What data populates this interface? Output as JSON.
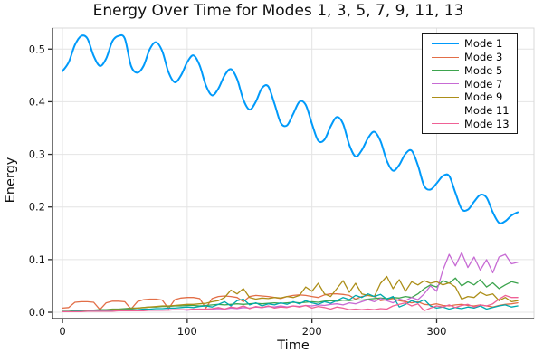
{
  "chart_data": {
    "type": "line",
    "title": "Energy Over Time for Modes 1, 3, 5, 7, 9, 11, 13",
    "xlabel": "Time",
    "ylabel": "Energy",
    "xlim": [
      -8,
      378
    ],
    "ylim": [
      -0.012,
      0.54
    ],
    "grid": true,
    "legend_position": "top-right",
    "background_color": "#ffffff",
    "grid_color": "#e4e4e4",
    "frame_color": "#d9d9d9",
    "spine_color": "#2a2a2a",
    "xticks": {
      "values": [
        0,
        100,
        200,
        300
      ],
      "labels": [
        "0",
        "100",
        "200",
        "300"
      ]
    },
    "yticks": {
      "values": [
        0.0,
        0.1,
        0.2,
        0.3,
        0.4,
        0.5
      ],
      "labels": [
        "0.0",
        "0.1",
        "0.2",
        "0.3",
        "0.4",
        "0.5"
      ]
    },
    "t_start": 0,
    "t_step": 5,
    "series": [
      {
        "name": "Mode 1",
        "color": "#009AFA",
        "width": 2,
        "smooth": true,
        "values": [
          0.458,
          0.475,
          0.508,
          0.525,
          0.52,
          0.487,
          0.468,
          0.482,
          0.515,
          0.525,
          0.52,
          0.468,
          0.455,
          0.468,
          0.5,
          0.513,
          0.496,
          0.456,
          0.437,
          0.45,
          0.475,
          0.488,
          0.469,
          0.431,
          0.412,
          0.425,
          0.45,
          0.462,
          0.443,
          0.404,
          0.385,
          0.4,
          0.426,
          0.429,
          0.396,
          0.36,
          0.355,
          0.377,
          0.4,
          0.394,
          0.358,
          0.326,
          0.328,
          0.353,
          0.371,
          0.358,
          0.318,
          0.296,
          0.308,
          0.331,
          0.343,
          0.325,
          0.288,
          0.269,
          0.28,
          0.301,
          0.307,
          0.279,
          0.24,
          0.233,
          0.245,
          0.259,
          0.259,
          0.227,
          0.196,
          0.195,
          0.21,
          0.223,
          0.218,
          0.19,
          0.17,
          0.173,
          0.184,
          0.19
        ]
      },
      {
        "name": "Mode 3",
        "color": "#E26E47",
        "width": 1.3,
        "smooth": false,
        "values": [
          0.008,
          0.009,
          0.019,
          0.02,
          0.02,
          0.019,
          0.005,
          0.018,
          0.021,
          0.021,
          0.02,
          0.006,
          0.02,
          0.024,
          0.025,
          0.025,
          0.023,
          0.007,
          0.024,
          0.027,
          0.028,
          0.028,
          0.026,
          0.008,
          0.026,
          0.03,
          0.031,
          0.03,
          0.028,
          0.02,
          0.03,
          0.032,
          0.031,
          0.03,
          0.028,
          0.026,
          0.03,
          0.032,
          0.033,
          0.032,
          0.03,
          0.028,
          0.033,
          0.035,
          0.035,
          0.034,
          0.032,
          0.025,
          0.03,
          0.032,
          0.03,
          0.022,
          0.024,
          0.026,
          0.022,
          0.02,
          0.018,
          0.02,
          0.015,
          0.014,
          0.016,
          0.013,
          0.012,
          0.014,
          0.015,
          0.013,
          0.012,
          0.014,
          0.012,
          0.01,
          0.013,
          0.015,
          0.016,
          0.018
        ]
      },
      {
        "name": "Mode 5",
        "color": "#3DA44E",
        "width": 1.3,
        "smooth": false,
        "values": [
          0.002,
          0.002,
          0.003,
          0.003,
          0.004,
          0.004,
          0.005,
          0.005,
          0.006,
          0.006,
          0.007,
          0.008,
          0.008,
          0.009,
          0.01,
          0.01,
          0.011,
          0.011,
          0.012,
          0.012,
          0.013,
          0.013,
          0.012,
          0.013,
          0.014,
          0.015,
          0.014,
          0.015,
          0.016,
          0.015,
          0.016,
          0.017,
          0.016,
          0.017,
          0.018,
          0.017,
          0.018,
          0.019,
          0.018,
          0.019,
          0.02,
          0.019,
          0.021,
          0.022,
          0.021,
          0.023,
          0.022,
          0.024,
          0.023,
          0.025,
          0.026,
          0.027,
          0.026,
          0.028,
          0.027,
          0.03,
          0.028,
          0.035,
          0.045,
          0.052,
          0.048,
          0.06,
          0.055,
          0.065,
          0.05,
          0.058,
          0.052,
          0.062,
          0.048,
          0.056,
          0.045,
          0.052,
          0.058,
          0.055
        ]
      },
      {
        "name": "Mode 7",
        "color": "#C76BD4",
        "width": 1.3,
        "smooth": false,
        "values": [
          0.001,
          0.001,
          0.001,
          0.002,
          0.002,
          0.002,
          0.002,
          0.003,
          0.003,
          0.003,
          0.003,
          0.003,
          0.003,
          0.004,
          0.004,
          0.004,
          0.004,
          0.005,
          0.005,
          0.005,
          0.004,
          0.005,
          0.006,
          0.005,
          0.006,
          0.007,
          0.006,
          0.008,
          0.007,
          0.009,
          0.008,
          0.01,
          0.009,
          0.011,
          0.01,
          0.012,
          0.01,
          0.012,
          0.011,
          0.013,
          0.012,
          0.014,
          0.013,
          0.015,
          0.016,
          0.014,
          0.018,
          0.016,
          0.02,
          0.024,
          0.02,
          0.026,
          0.022,
          0.018,
          0.025,
          0.022,
          0.028,
          0.024,
          0.035,
          0.05,
          0.04,
          0.08,
          0.11,
          0.088,
          0.113,
          0.085,
          0.105,
          0.08,
          0.1,
          0.075,
          0.105,
          0.11,
          0.092,
          0.095
        ]
      },
      {
        "name": "Mode 9",
        "color": "#AC8E18",
        "width": 1.3,
        "smooth": false,
        "values": [
          0.001,
          0.001,
          0.002,
          0.002,
          0.003,
          0.003,
          0.004,
          0.004,
          0.005,
          0.005,
          0.006,
          0.007,
          0.008,
          0.009,
          0.01,
          0.011,
          0.012,
          0.012,
          0.013,
          0.014,
          0.015,
          0.015,
          0.016,
          0.017,
          0.02,
          0.022,
          0.028,
          0.042,
          0.035,
          0.045,
          0.028,
          0.025,
          0.027,
          0.026,
          0.028,
          0.027,
          0.03,
          0.028,
          0.032,
          0.048,
          0.04,
          0.055,
          0.035,
          0.03,
          0.045,
          0.06,
          0.038,
          0.055,
          0.035,
          0.032,
          0.03,
          0.055,
          0.068,
          0.045,
          0.062,
          0.04,
          0.058,
          0.052,
          0.06,
          0.055,
          0.058,
          0.052,
          0.056,
          0.048,
          0.025,
          0.03,
          0.028,
          0.038,
          0.032,
          0.035,
          0.022,
          0.028,
          0.02,
          0.022
        ]
      },
      {
        "name": "Mode 11",
        "color": "#00A9AD",
        "width": 1.3,
        "smooth": false,
        "values": [
          0.001,
          0.001,
          0.002,
          0.002,
          0.002,
          0.003,
          0.003,
          0.003,
          0.004,
          0.004,
          0.005,
          0.005,
          0.005,
          0.006,
          0.006,
          0.007,
          0.007,
          0.008,
          0.008,
          0.009,
          0.01,
          0.009,
          0.011,
          0.012,
          0.01,
          0.015,
          0.02,
          0.012,
          0.022,
          0.025,
          0.014,
          0.018,
          0.012,
          0.016,
          0.014,
          0.018,
          0.015,
          0.02,
          0.016,
          0.022,
          0.018,
          0.015,
          0.02,
          0.017,
          0.022,
          0.028,
          0.024,
          0.032,
          0.028,
          0.035,
          0.03,
          0.034,
          0.025,
          0.03,
          0.01,
          0.015,
          0.022,
          0.018,
          0.024,
          0.012,
          0.008,
          0.01,
          0.006,
          0.009,
          0.007,
          0.01,
          0.008,
          0.012,
          0.006,
          0.009,
          0.012,
          0.014,
          0.01,
          0.012
        ]
      },
      {
        "name": "Mode 13",
        "color": "#EF6196",
        "width": 1.3,
        "smooth": false,
        "values": [
          0.001,
          0.001,
          0.001,
          0.001,
          0.002,
          0.002,
          0.002,
          0.002,
          0.002,
          0.003,
          0.003,
          0.003,
          0.003,
          0.003,
          0.004,
          0.004,
          0.004,
          0.004,
          0.005,
          0.005,
          0.005,
          0.006,
          0.006,
          0.006,
          0.007,
          0.009,
          0.006,
          0.01,
          0.008,
          0.012,
          0.007,
          0.011,
          0.009,
          0.012,
          0.008,
          0.01,
          0.009,
          0.012,
          0.01,
          0.013,
          0.008,
          0.011,
          0.009,
          0.006,
          0.01,
          0.008,
          0.005,
          0.006,
          0.005,
          0.006,
          0.005,
          0.007,
          0.006,
          0.012,
          0.015,
          0.018,
          0.012,
          0.016,
          0.003,
          0.008,
          0.012,
          0.01,
          0.014,
          0.009,
          0.013,
          0.015,
          0.01,
          0.014,
          0.012,
          0.016,
          0.025,
          0.032,
          0.028,
          0.028
        ]
      }
    ]
  }
}
